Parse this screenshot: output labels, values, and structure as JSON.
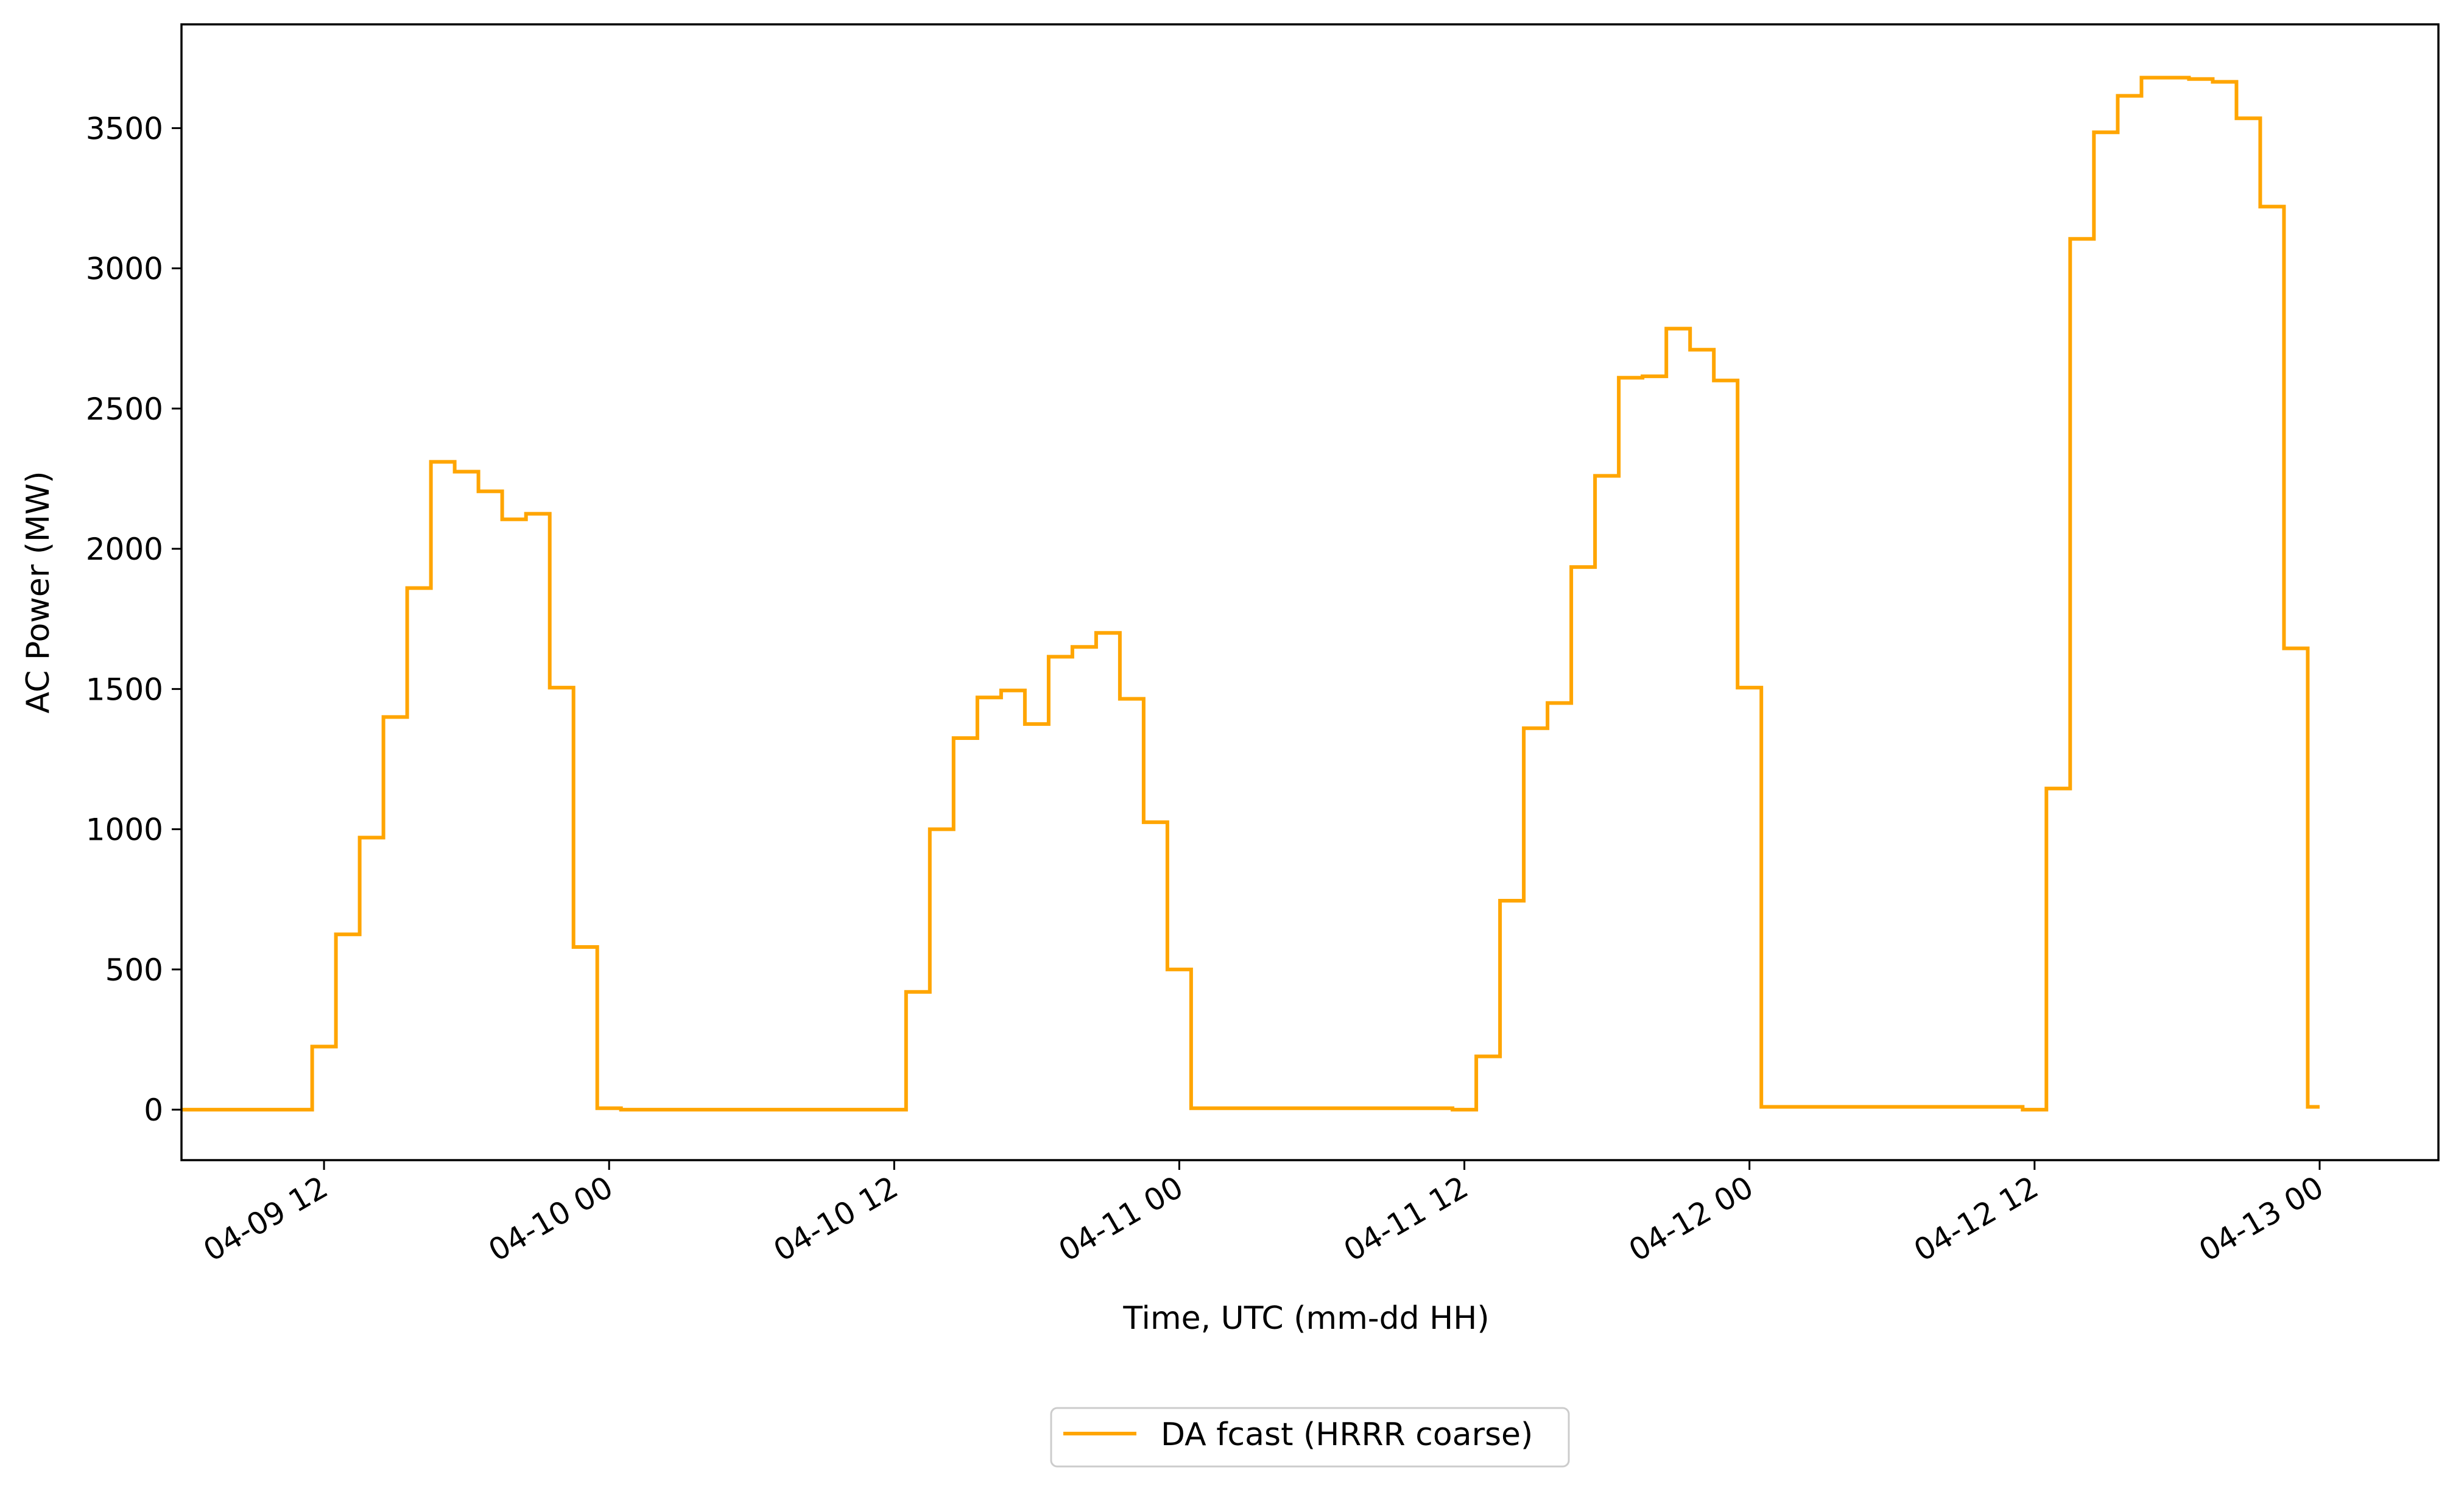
{
  "chart_data": {
    "type": "line",
    "step": "post",
    "title": "",
    "xlabel": "Time, UTC (mm-dd HH)",
    "ylabel": "AC Power (MW)",
    "x_tick_labels": [
      "04-09 12",
      "04-10 00",
      "04-10 12",
      "04-11 00",
      "04-11 12",
      "04-12 00",
      "04-12 12",
      "04-13 00"
    ],
    "y_tick_labels": [
      "0",
      "500",
      "1000",
      "1500",
      "2000",
      "2500",
      "3000",
      "3500"
    ],
    "y_ticks": [
      0,
      500,
      1000,
      1500,
      2000,
      2500,
      3000,
      3500
    ],
    "ylim": [
      -180,
      3870
    ],
    "xlim": [
      "2022-04-09 06:00",
      "2022-04-13 05:00"
    ],
    "grid": false,
    "legend_position": "bottom-center",
    "series": [
      {
        "name": "DA fcast (HRRR coarse)",
        "color": "#ffa500",
        "x": [
          "2022-04-09 06:00",
          "2022-04-09 11:30",
          "2022-04-09 12:30",
          "2022-04-09 13:30",
          "2022-04-09 14:30",
          "2022-04-09 15:30",
          "2022-04-09 16:30",
          "2022-04-09 17:30",
          "2022-04-09 18:30",
          "2022-04-09 19:30",
          "2022-04-09 20:30",
          "2022-04-09 21:30",
          "2022-04-09 22:30",
          "2022-04-09 23:30",
          "2022-04-10 00:30",
          "2022-04-10 11:30",
          "2022-04-10 12:30",
          "2022-04-10 13:30",
          "2022-04-10 14:30",
          "2022-04-10 15:30",
          "2022-04-10 16:30",
          "2022-04-10 17:30",
          "2022-04-10 18:30",
          "2022-04-10 19:30",
          "2022-04-10 20:30",
          "2022-04-10 21:30",
          "2022-04-10 22:30",
          "2022-04-10 23:30",
          "2022-04-11 00:30",
          "2022-04-11 11:30",
          "2022-04-11 12:30",
          "2022-04-11 13:30",
          "2022-04-11 14:30",
          "2022-04-11 15:30",
          "2022-04-11 16:30",
          "2022-04-11 17:30",
          "2022-04-11 18:30",
          "2022-04-11 19:30",
          "2022-04-11 20:30",
          "2022-04-11 21:30",
          "2022-04-11 22:30",
          "2022-04-11 23:30",
          "2022-04-12 00:30",
          "2022-04-12 11:30",
          "2022-04-12 12:30",
          "2022-04-12 13:30",
          "2022-04-12 14:30",
          "2022-04-12 15:30",
          "2022-04-12 16:30",
          "2022-04-12 17:30",
          "2022-04-12 18:30",
          "2022-04-12 19:30",
          "2022-04-12 20:30",
          "2022-04-12 21:30",
          "2022-04-12 22:30",
          "2022-04-12 23:30",
          "2022-04-13 00:00"
        ],
        "y": [
          0,
          225,
          625,
          970,
          1400,
          1860,
          2310,
          2275,
          2205,
          2105,
          2125,
          1505,
          580,
          5,
          0,
          0,
          420,
          1000,
          1325,
          1470,
          1495,
          1375,
          1615,
          1650,
          1700,
          1465,
          1025,
          500,
          5,
          0,
          190,
          745,
          1360,
          1450,
          1935,
          2260,
          2610,
          2615,
          2785,
          2710,
          2600,
          1505,
          10,
          0,
          1145,
          3105,
          3485,
          3615,
          3680,
          3680,
          3675,
          3665,
          3535,
          3220,
          1645,
          10,
          10
        ]
      }
    ]
  }
}
